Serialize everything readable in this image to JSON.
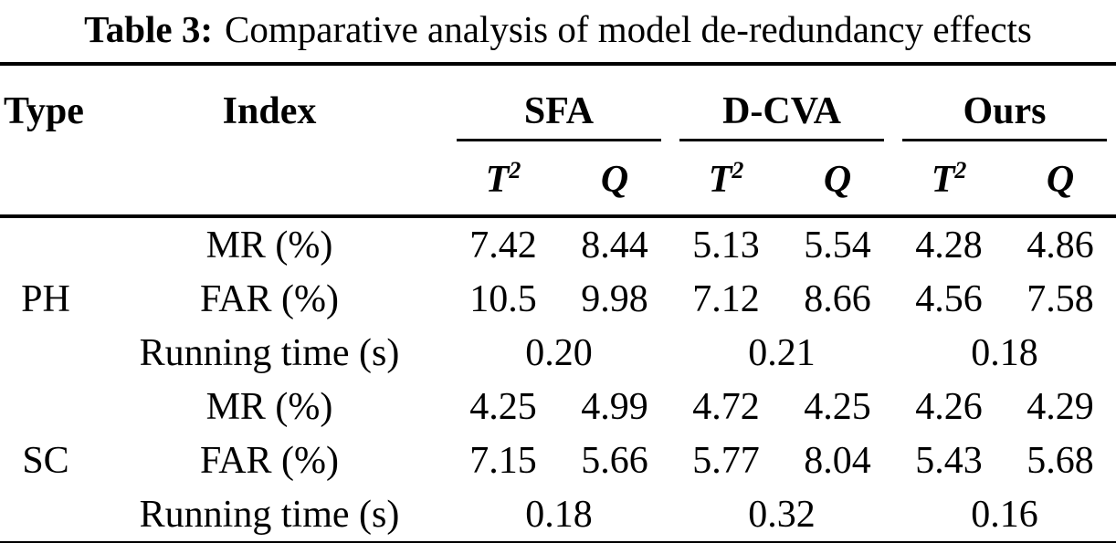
{
  "caption": {
    "label": "Table 3:",
    "text": "Comparative analysis of model de-redundancy effects"
  },
  "colors": {
    "text": "#000000",
    "background": "#ffffff",
    "rule": "#000000"
  },
  "header": {
    "type": "Type",
    "index": "Index",
    "groups": [
      {
        "name": "SFA"
      },
      {
        "name": "D-CVA"
      },
      {
        "name": "Ours"
      }
    ],
    "subcols": {
      "t_base": "T",
      "t_sup": "2",
      "q": "Q"
    }
  },
  "body": {
    "groups": [
      {
        "type": "PH",
        "rows": [
          {
            "index": "MR (%)",
            "values": [
              "7.42",
              "8.44",
              "5.13",
              "5.54",
              "4.28",
              "4.86"
            ]
          },
          {
            "index": "FAR (%)",
            "values": [
              "10.5",
              "9.98",
              "7.12",
              "8.66",
              "4.56",
              "7.58"
            ]
          },
          {
            "index": "Running time (s)",
            "values": [
              "0.20",
              "0.21",
              "0.18"
            ]
          }
        ]
      },
      {
        "type": "SC",
        "rows": [
          {
            "index": "MR (%)",
            "values": [
              "4.25",
              "4.99",
              "4.72",
              "4.25",
              "4.26",
              "4.29"
            ]
          },
          {
            "index": "FAR (%)",
            "values": [
              "7.15",
              "5.66",
              "5.77",
              "8.04",
              "5.43",
              "5.68"
            ]
          },
          {
            "index": "Running time (s)",
            "values": [
              "0.18",
              "0.32",
              "0.16"
            ]
          }
        ]
      }
    ]
  }
}
